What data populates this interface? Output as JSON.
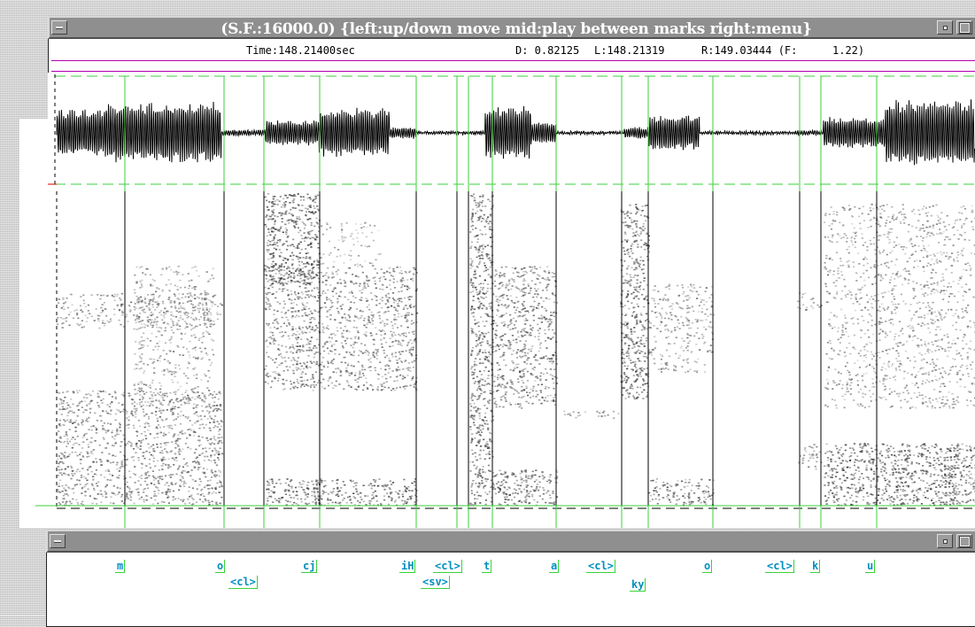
{
  "top_window": {
    "title": "(S.F.:16000.0) {left:up/down move  mid:play between marks  right:menu}",
    "time_label": "Time:148.21400sec",
    "duration_label": "D: 0.82125",
    "left_label": "L:148.21319",
    "right_label": "R:149.03444 (F:",
    "factor_label": "1.22)"
  },
  "label_window": {
    "labels": [
      {
        "text": "m",
        "row": 1
      },
      {
        "text": "o",
        "row": 1
      },
      {
        "text": "<cl>",
        "row": 2
      },
      {
        "text": "cj",
        "row": 1
      },
      {
        "text": "iH",
        "row": 1
      },
      {
        "text": "<cl>",
        "row": 1
      },
      {
        "text": "<sv>",
        "row": 2
      },
      {
        "text": "t",
        "row": 1
      },
      {
        "text": "a",
        "row": 1
      },
      {
        "text": "<cl>",
        "row": 1
      },
      {
        "text": "ky",
        "row": 2
      },
      {
        "text": "o",
        "row": 1
      },
      {
        "text": "<cl>",
        "row": 1
      },
      {
        "text": "k",
        "row": 1
      },
      {
        "text": "u",
        "row": 1
      }
    ]
  },
  "colors": {
    "marker_green": "#3ad23a",
    "label_cyan": "#008fc0",
    "range_magenta": "#b000b0",
    "title_gray": "#8f8f8f"
  },
  "icons": [
    "window-menu-icon",
    "iconify-icon",
    "maximize-icon"
  ]
}
